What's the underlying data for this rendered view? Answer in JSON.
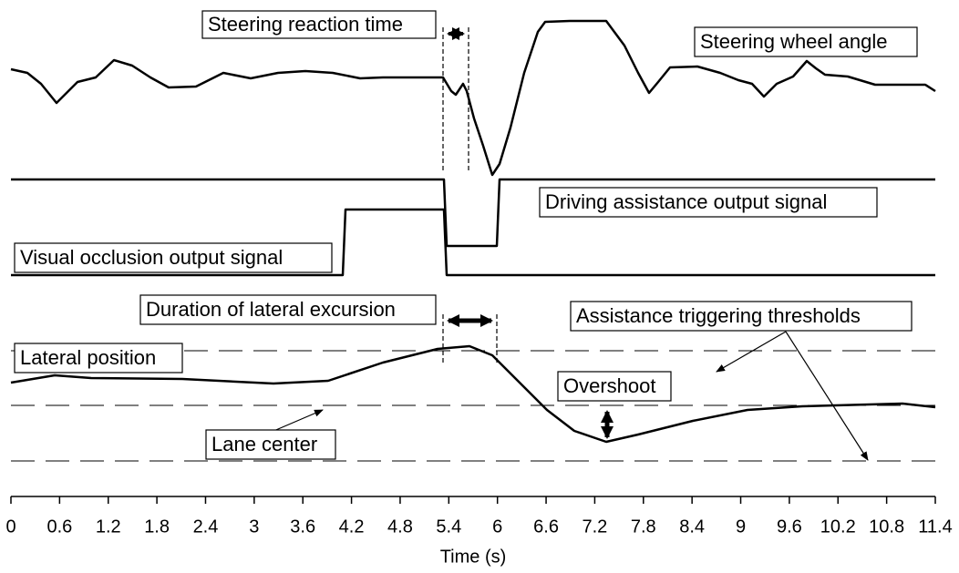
{
  "labels": {
    "steering_reaction_time": "Steering reaction time",
    "steering_wheel_angle": "Steering wheel angle",
    "driving_assistance_output_signal": "Driving assistance output signal",
    "visual_occlusion_output_signal": "Visual occlusion output signal",
    "duration_of_lateral_excursion": "Duration of lateral excursion",
    "assistance_triggering_thresholds": "Assistance triggering thresholds",
    "lateral_position": "Lateral position",
    "overshoot": "Overshoot",
    "lane_center": "Lane center"
  },
  "x_axis": {
    "title": "Time (s)",
    "xlim": [
      0,
      11.4
    ],
    "xticks": [
      0,
      0.6,
      1.2,
      1.8,
      2.4,
      3,
      3.6,
      4.2,
      4.8,
      5.4,
      6,
      6.6,
      7.2,
      7.8,
      8.4,
      9,
      9.6,
      10.2,
      10.8,
      11.4
    ]
  }
}
